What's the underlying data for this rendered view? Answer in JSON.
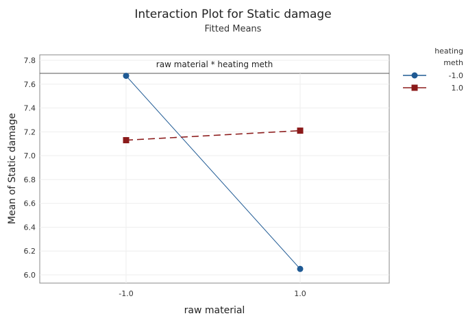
{
  "chart_data": {
    "type": "line",
    "title": "Interaction Plot for Static damage",
    "subtitle": "Fitted Means",
    "panel_header": "raw material * heating meth",
    "xlabel": "raw material",
    "ylabel": "Mean of Static damage",
    "categories": [
      "-1.0",
      "1.0"
    ],
    "ylim": [
      6.0,
      7.8
    ],
    "yticks": [
      "6.0",
      "6.2",
      "6.4",
      "6.6",
      "6.8",
      "7.0",
      "7.2",
      "7.4",
      "7.6",
      "7.8"
    ],
    "grid": true,
    "legend": {
      "title_line1": "heating",
      "title_line2": "meth",
      "placement": "right"
    },
    "series": [
      {
        "name": "-1.0",
        "values": [
          7.67,
          6.05
        ],
        "color": "#1f5a94",
        "marker": "circle",
        "dash": false
      },
      {
        "name": "1.0",
        "values": [
          7.13,
          7.21
        ],
        "color": "#8b1a1a",
        "marker": "square",
        "dash": true
      }
    ]
  }
}
